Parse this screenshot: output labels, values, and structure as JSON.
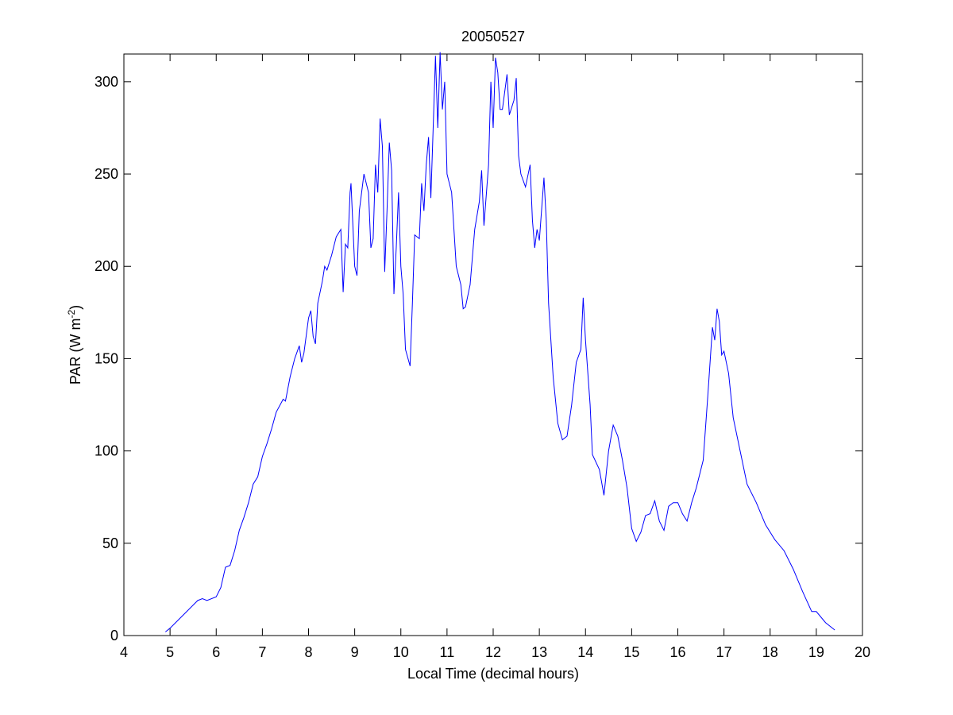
{
  "chart_data": {
    "type": "line",
    "title": "20050527",
    "xlabel": "Local Time (decimal hours)",
    "ylabel": [
      "PAR (W m",
      "-2",
      ")"
    ],
    "xlim": [
      4,
      20
    ],
    "xticks": [
      4,
      5,
      6,
      7,
      8,
      9,
      10,
      11,
      12,
      13,
      14,
      15,
      16,
      17,
      18,
      19,
      20
    ],
    "ylim": [
      0,
      315
    ],
    "yticks": [
      0,
      50,
      100,
      150,
      200,
      250,
      300
    ],
    "grid": false,
    "series": [
      {
        "color": "#0000ff",
        "x": [
          4.9,
          5.0,
          5.2,
          5.4,
          5.6,
          5.7,
          5.8,
          6.0,
          6.1,
          6.2,
          6.3,
          6.4,
          6.5,
          6.6,
          6.7,
          6.8,
          6.9,
          7.0,
          7.1,
          7.2,
          7.3,
          7.45,
          7.5,
          7.6,
          7.7,
          7.8,
          7.85,
          7.9,
          8.0,
          8.05,
          8.1,
          8.15,
          8.2,
          8.3,
          8.35,
          8.4,
          8.5,
          8.6,
          8.7,
          8.75,
          8.8,
          8.85,
          8.9,
          8.92,
          9.0,
          9.05,
          9.1,
          9.2,
          9.3,
          9.35,
          9.4,
          9.45,
          9.5,
          9.55,
          9.6,
          9.65,
          9.7,
          9.75,
          9.8,
          9.85,
          9.9,
          9.95,
          10.0,
          10.05,
          10.1,
          10.2,
          10.25,
          10.3,
          10.4,
          10.45,
          10.5,
          10.55,
          10.6,
          10.65,
          10.7,
          10.75,
          10.8,
          10.85,
          10.9,
          10.95,
          11.0,
          11.1,
          11.2,
          11.3,
          11.35,
          11.4,
          11.5,
          11.6,
          11.7,
          11.75,
          11.8,
          11.9,
          11.95,
          12.0,
          12.05,
          12.1,
          12.15,
          12.2,
          12.3,
          12.35,
          12.45,
          12.5,
          12.55,
          12.6,
          12.7,
          12.8,
          12.85,
          12.9,
          12.95,
          13.0,
          13.1,
          13.15,
          13.2,
          13.3,
          13.4,
          13.5,
          13.6,
          13.7,
          13.8,
          13.9,
          13.95,
          14.0,
          14.1,
          14.15,
          14.3,
          14.4,
          14.5,
          14.6,
          14.7,
          14.8,
          14.9,
          15.0,
          15.1,
          15.2,
          15.3,
          15.4,
          15.5,
          15.6,
          15.7,
          15.8,
          15.9,
          16.0,
          16.1,
          16.2,
          16.3,
          16.4,
          16.55,
          16.65,
          16.75,
          16.8,
          16.85,
          16.9,
          16.95,
          17.0,
          17.1,
          17.2,
          17.35,
          17.5,
          17.7,
          17.9,
          18.1,
          18.3,
          18.5,
          18.7,
          18.9,
          19.0,
          19.2,
          19.4
        ],
        "values": [
          2,
          4,
          9,
          14,
          19,
          20,
          19,
          21,
          26,
          37,
          38,
          46,
          57,
          64,
          72,
          82,
          86,
          97,
          104,
          112,
          121,
          128,
          127,
          140,
          150,
          157,
          148,
          153,
          172,
          176,
          162,
          158,
          180,
          192,
          200,
          198,
          206,
          216,
          220,
          186,
          212,
          210,
          240,
          245,
          200,
          195,
          230,
          250,
          240,
          210,
          215,
          255,
          240,
          280,
          265,
          197,
          230,
          267,
          252,
          185,
          210,
          240,
          200,
          185,
          155,
          146,
          180,
          217,
          215,
          245,
          230,
          255,
          270,
          237,
          275,
          314,
          275,
          316,
          285,
          300,
          250,
          240,
          200,
          190,
          177,
          178,
          190,
          220,
          235,
          252,
          222,
          255,
          300,
          275,
          313,
          305,
          285,
          285,
          304,
          282,
          290,
          302,
          260,
          250,
          243,
          255,
          225,
          210,
          220,
          214,
          248,
          225,
          180,
          140,
          115,
          106,
          108,
          125,
          148,
          155,
          183,
          160,
          125,
          98,
          90,
          76,
          100,
          114,
          108,
          95,
          80,
          58,
          51,
          56,
          65,
          66,
          73,
          62,
          57,
          70,
          72,
          72,
          66,
          62,
          72,
          80,
          95,
          130,
          167,
          160,
          177,
          170,
          152,
          154,
          142,
          118,
          100,
          82,
          72,
          60,
          52,
          46,
          36,
          24,
          13,
          13,
          7,
          3
        ]
      }
    ]
  }
}
